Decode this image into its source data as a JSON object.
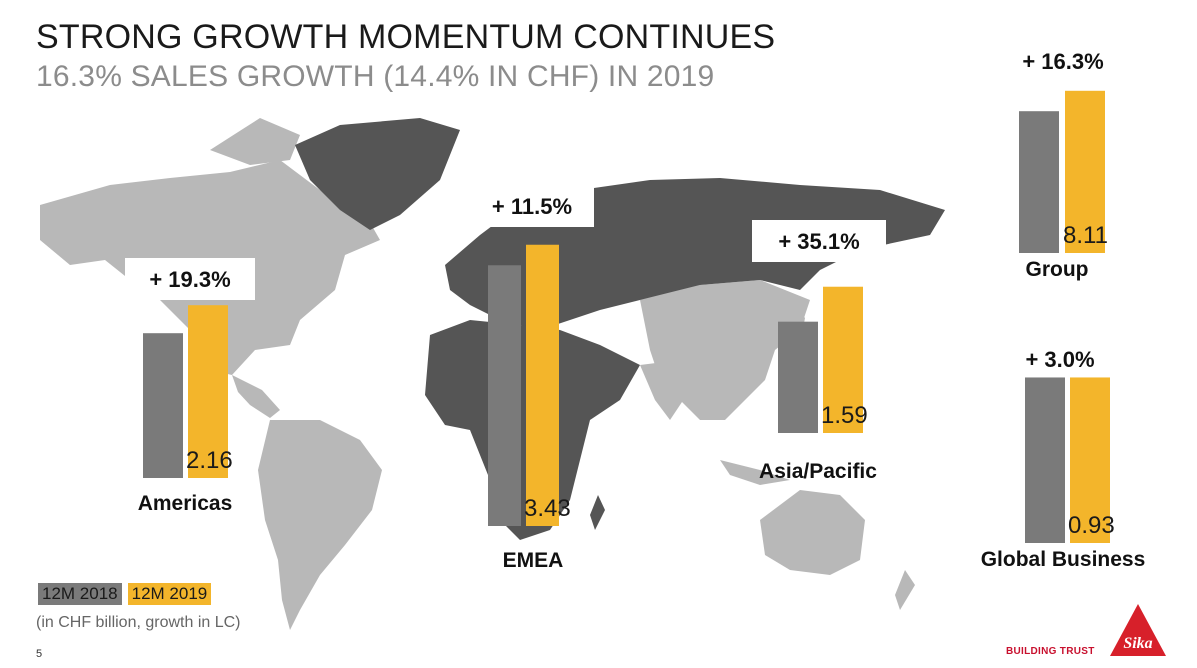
{
  "header": {
    "title": "STRONG GROWTH MOMENTUM CONTINUES",
    "subtitle": "16.3% SALES GROWTH (14.4% IN CHF) IN 2019"
  },
  "chart_data": {
    "type": "bar",
    "series": [
      {
        "name": "12M 2018",
        "color": "#7a7a7a"
      },
      {
        "name": "12M 2019",
        "color": "#f3b52b"
      }
    ],
    "groups": [
      {
        "label": "Americas",
        "growth": "+ 19.3%",
        "value_2019": "2.16",
        "v2018": 1.81,
        "v2019": 2.16
      },
      {
        "label": "EMEA",
        "growth": "+ 11.5%",
        "value_2019": "3.43",
        "v2018": 3.18,
        "v2019": 3.43
      },
      {
        "label": "Asia/Pacific",
        "growth": "+ 35.1%",
        "value_2019": "1.59",
        "v2018": 1.21,
        "v2019": 1.59
      },
      {
        "label": "Group",
        "growth": "+ 16.3%",
        "value_2019": "8.11",
        "v2018": 7.09,
        "v2019": 8.11
      },
      {
        "label": "Global Business",
        "growth": "+ 3.0%",
        "value_2019": "0.93",
        "v2018": 0.93,
        "v2019": 0.93
      }
    ]
  },
  "legend": {
    "a": "12M 2018",
    "b": "12M 2019"
  },
  "note": "(in CHF billion, growth in LC)",
  "footer": {
    "page": "5",
    "slogan": "BUILDING TRUST",
    "logo_text": "Sika"
  }
}
